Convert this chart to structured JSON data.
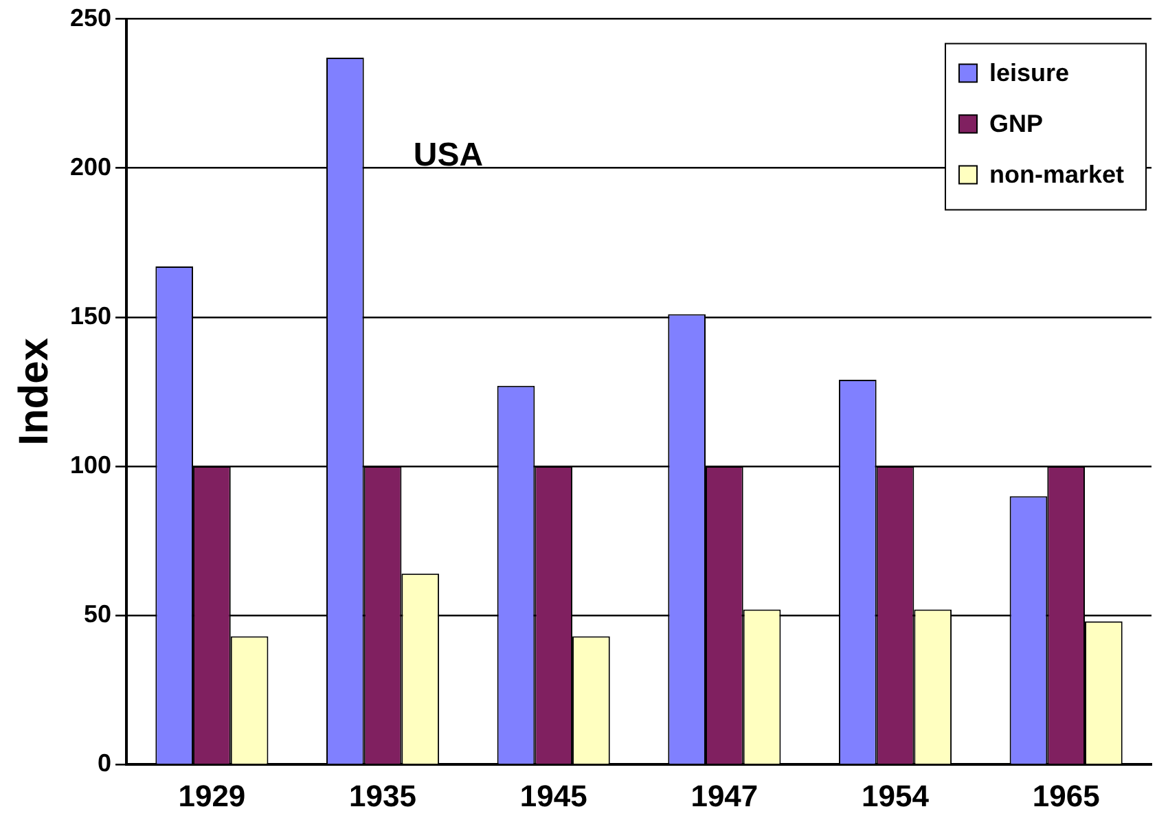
{
  "chart_data": {
    "type": "bar",
    "ylabel": "Index",
    "annotations": [
      "USA"
    ],
    "categories": [
      "1929",
      "1935",
      "1945",
      "1947",
      "1954",
      "1965"
    ],
    "series": [
      {
        "name": "leisure",
        "color": "#8080ff",
        "values": [
          167,
          237,
          127,
          151,
          129,
          90
        ]
      },
      {
        "name": "GNP",
        "color": "#802060",
        "values": [
          100,
          100,
          100,
          100,
          100,
          100
        ]
      },
      {
        "name": "non-market",
        "color": "#ffffc0",
        "values": [
          43,
          64,
          43,
          52,
          52,
          48
        ]
      }
    ],
    "ylim": [
      0,
      250
    ],
    "yticks": [
      0,
      50,
      100,
      150,
      200,
      250
    ],
    "grid": "y",
    "legend": "top right"
  }
}
